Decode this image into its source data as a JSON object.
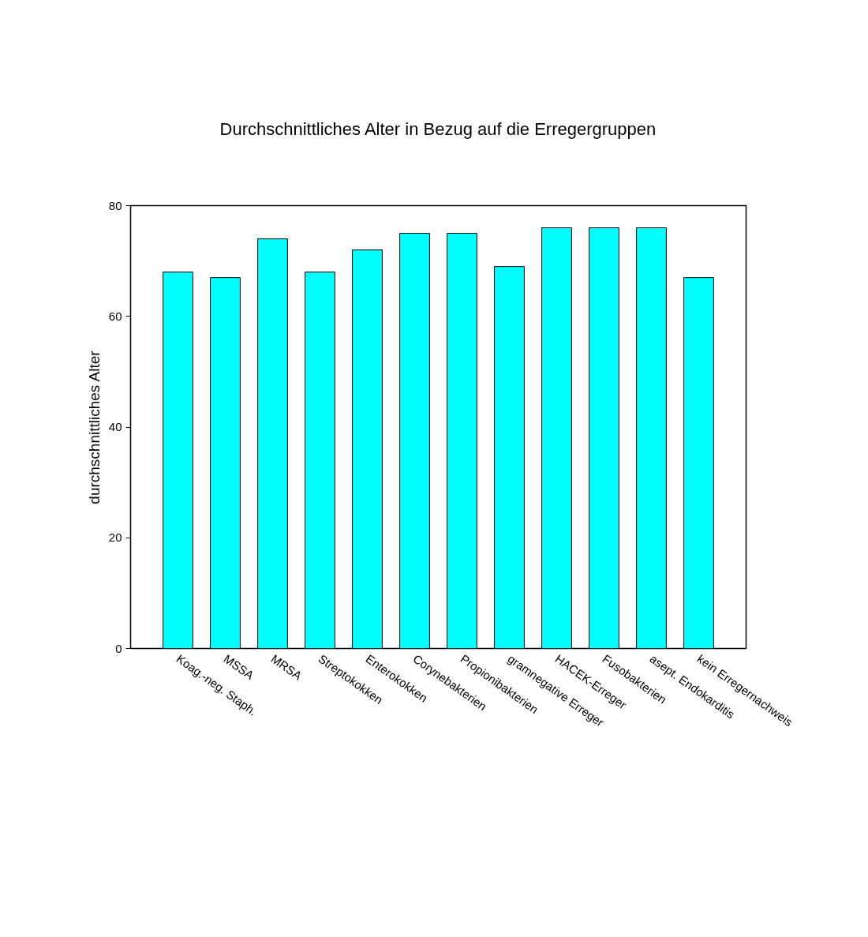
{
  "chart_data": {
    "type": "bar",
    "title": "Durchschnittliches Alter in Bezug auf die Erregergruppen",
    "ylabel": "durchschnittliches Alter",
    "categories": [
      "Koag.-neg. Staph.",
      "MSSA",
      "MRSA",
      "Streptokokken",
      "Enterokokken",
      "Corynebakterien",
      "Propionibakterien",
      "gramnegative Erreger",
      "HACEK-Erreger",
      "Fusobakterien",
      "asept. Endokarditis",
      "kein Erregernachweis"
    ],
    "values": [
      68,
      67,
      74,
      68,
      72,
      75,
      75,
      69,
      76,
      76,
      76,
      67
    ],
    "color": "#00ffff",
    "ylim": [
      0,
      80
    ],
    "yticks": [
      0,
      20,
      40,
      60,
      80
    ],
    "grid": false
  }
}
